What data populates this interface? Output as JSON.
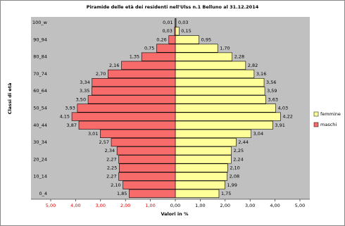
{
  "chart_data": {
    "type": "pyramid",
    "title": "Piramide delle età dei residenti nell'Ulss n.1 Belluno al 31.12.2014",
    "x_label": "Valori in %",
    "y_label": "Classi di età",
    "categories": [
      "0_4",
      null,
      "10_14",
      null,
      "20_24",
      null,
      "30_34",
      null,
      "40_44",
      null,
      "50_54",
      null,
      "60_64",
      null,
      "70_74",
      null,
      "80_84",
      null,
      "90_94",
      null,
      "100_w"
    ],
    "series": [
      {
        "name": "femmine",
        "color": "#ffff99",
        "values": [
          1.75,
          1.99,
          2.08,
          2.1,
          2.24,
          2.25,
          2.44,
          3.04,
          3.91,
          4.22,
          4.03,
          3.63,
          3.59,
          3.56,
          3.16,
          2.82,
          2.28,
          1.7,
          0.95,
          0.15,
          0.03
        ],
        "value_labels": [
          "1,75",
          "1,99",
          "2,08",
          "2,10",
          "2,24",
          "2,25",
          "2,44",
          "3,04",
          "3,91",
          "4,22",
          "4,03",
          "3,63",
          "3,59",
          "3,56",
          "3,16",
          "2,82",
          "2,28",
          "1,70",
          "0,95",
          "0,15",
          "0,03"
        ]
      },
      {
        "name": "maschi",
        "color": "#f76b6b",
        "values": [
          -1.85,
          -2.1,
          -2.27,
          -2.25,
          -2.27,
          -2.34,
          -2.57,
          -3.01,
          -3.87,
          -4.15,
          -3.93,
          -3.5,
          -3.35,
          -3.34,
          -2.7,
          -2.16,
          -1.35,
          -0.75,
          -0.26,
          -0.03,
          -0.01
        ],
        "value_labels": [
          "1,85",
          "2,10",
          "2,27",
          "2,25",
          "2,27",
          "2,34",
          "2,57",
          "3,01",
          "3,87",
          "4,15",
          "3,93",
          "3,50",
          "3,35",
          "3,34",
          "2,70",
          "2,16",
          "1,35",
          "0,75",
          "0,26",
          "0,03",
          "0,01"
        ]
      }
    ],
    "xlim": [
      -5,
      5
    ],
    "xticks": [
      {
        "value": -5,
        "label": "5,00"
      },
      {
        "value": -4,
        "label": "4,00"
      },
      {
        "value": -3,
        "label": "3,00"
      },
      {
        "value": -2,
        "label": "2,00"
      },
      {
        "value": -1,
        "label": "1,00"
      },
      {
        "value": 0,
        "label": "0,00"
      },
      {
        "value": 1,
        "label": "1,00"
      },
      {
        "value": 2,
        "label": "2,00"
      },
      {
        "value": 3,
        "label": "3,00"
      },
      {
        "value": 4,
        "label": "4,00"
      },
      {
        "value": 5,
        "label": "5,00"
      }
    ],
    "legend": "right"
  }
}
